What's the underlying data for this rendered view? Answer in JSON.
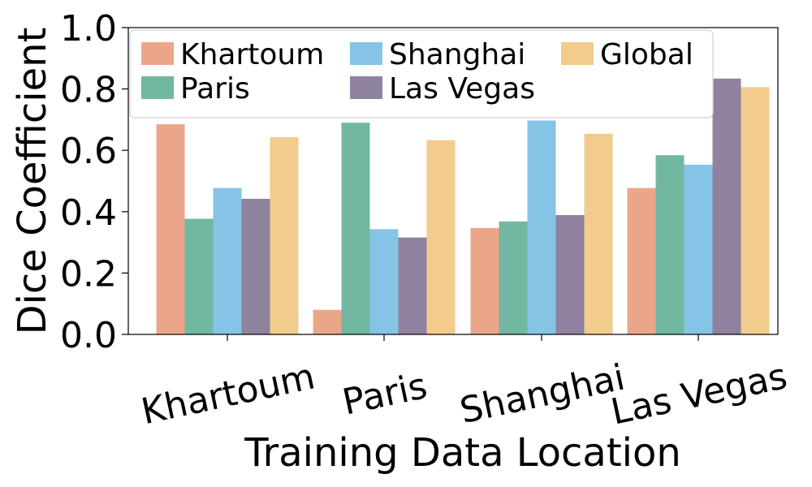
{
  "chart_data": {
    "type": "bar",
    "title": "",
    "xlabel": "Training Data Location",
    "ylabel": "Dice Coefficient",
    "ylim": [
      0,
      1.0
    ],
    "yticks": [
      "0.0",
      "0.2",
      "0.4",
      "0.6",
      "0.8",
      "1.0"
    ],
    "grid": false,
    "legend_position": "top",
    "categories": [
      "Khartoum",
      "Paris",
      "Shanghai",
      "Las Vegas"
    ],
    "series": [
      {
        "name": "Khartoum",
        "color": "#eba68a",
        "values": [
          0.685,
          0.08,
          0.347,
          0.477
        ]
      },
      {
        "name": "Paris",
        "color": "#72b7a1",
        "values": [
          0.377,
          0.69,
          0.368,
          0.584
        ]
      },
      {
        "name": "Shanghai",
        "color": "#85c4e6",
        "values": [
          0.477,
          0.343,
          0.697,
          0.553
        ]
      },
      {
        "name": "Las Vegas",
        "color": "#8f829f",
        "values": [
          0.442,
          0.316,
          0.389,
          0.834
        ]
      },
      {
        "name": "Global",
        "color": "#f2cb8d",
        "values": [
          0.643,
          0.633,
          0.654,
          0.806
        ]
      }
    ]
  }
}
